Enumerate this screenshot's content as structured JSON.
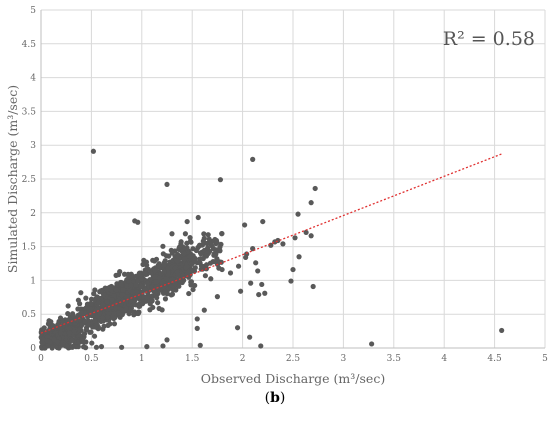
{
  "caption": {
    "open": "(",
    "letter": "b",
    "close": ")"
  },
  "chart_data": {
    "type": "scatter",
    "xlabel": "Observed Discharge (m³/sec)",
    "ylabel": "Simulated Discharge (m³/sec)",
    "xlim": [
      0,
      5
    ],
    "ylim": [
      0,
      5
    ],
    "xticks": [
      "0",
      "0.5",
      "1",
      "1.5",
      "2",
      "2.5",
      "3",
      "3.5",
      "4",
      "4.5",
      "5"
    ],
    "yticks": [
      "0",
      "0.5",
      "1",
      "1.5",
      "2",
      "2.5",
      "3",
      "3.5",
      "4",
      "4.5",
      "5"
    ],
    "grid": true,
    "annotation": "R² = 0.58",
    "point_color": "#595959",
    "trendline_color": "#e03030",
    "trendline": {
      "slope": 0.58,
      "intercept": 0.22,
      "x_range": [
        0,
        4.57
      ]
    },
    "series": [
      {
        "points": [
          [
            0.52,
            2.91
          ],
          [
            4.57,
            0.26
          ],
          [
            3.28,
            0.06
          ],
          [
            2.1,
            2.79
          ],
          [
            1.78,
            2.49
          ],
          [
            1.25,
            2.42
          ],
          [
            2.72,
            2.36
          ],
          [
            2.68,
            2.15
          ],
          [
            2.55,
            1.98
          ],
          [
            2.2,
            1.87
          ],
          [
            2.02,
            1.82
          ],
          [
            1.56,
            1.93
          ],
          [
            1.45,
            1.87
          ],
          [
            0.93,
            1.88
          ],
          [
            0.96,
            1.86
          ],
          [
            2.63,
            1.71
          ],
          [
            2.68,
            1.66
          ],
          [
            2.52,
            1.63
          ],
          [
            2.35,
            1.59
          ],
          [
            2.32,
            1.57
          ],
          [
            2.28,
            1.52
          ],
          [
            2.4,
            1.54
          ],
          [
            2.1,
            1.47
          ],
          [
            2.04,
            1.39
          ],
          [
            2.03,
            1.34
          ],
          [
            2.13,
            1.26
          ],
          [
            1.96,
            1.21
          ],
          [
            1.88,
            1.11
          ],
          [
            2.15,
            1.14
          ],
          [
            2.08,
            0.96
          ],
          [
            2.19,
            0.94
          ],
          [
            2.22,
            0.81
          ],
          [
            2.56,
            1.35
          ],
          [
            2.5,
            1.16
          ],
          [
            2.48,
            0.99
          ],
          [
            2.7,
            0.91
          ],
          [
            2.16,
            0.79
          ],
          [
            1.98,
            0.84
          ],
          [
            1.75,
            0.76
          ],
          [
            1.62,
            0.56
          ],
          [
            1.55,
            0.43
          ],
          [
            1.55,
            0.29
          ],
          [
            1.95,
            0.3
          ],
          [
            2.07,
            0.16
          ],
          [
            2.18,
            0.03
          ],
          [
            1.58,
            0.04
          ],
          [
            1.21,
            0.03
          ],
          [
            0.8,
            0.01
          ],
          [
            0.55,
            0.01
          ],
          [
            0.28,
            0.02
          ],
          [
            0.18,
            0.03
          ],
          [
            0.12,
            0.07
          ],
          [
            0.6,
            0.02
          ],
          [
            0.35,
            0.11
          ],
          [
            1.25,
            0.12
          ],
          [
            1.05,
            0.02
          ]
        ]
      }
    ]
  }
}
